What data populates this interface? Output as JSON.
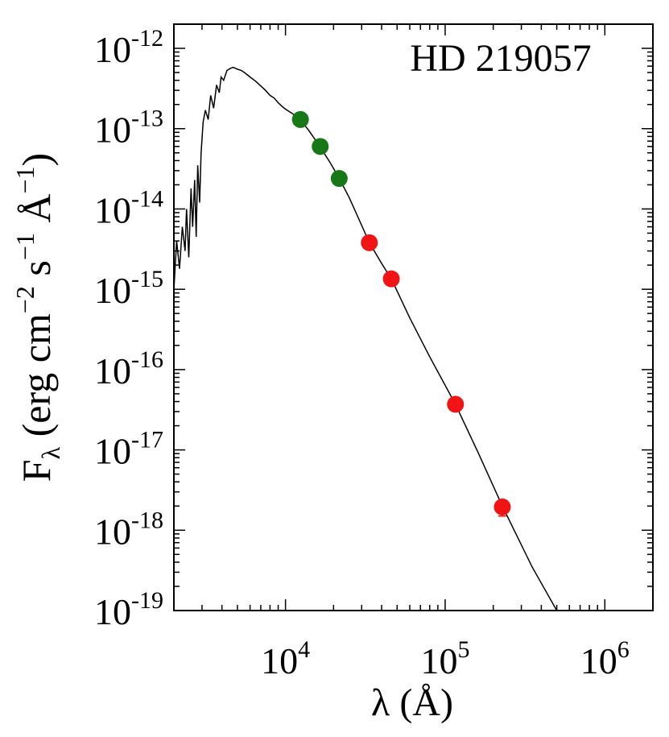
{
  "chart_data": {
    "type": "scatter",
    "annotation": "HD 219057",
    "xlabel": "λ (Å)",
    "ylabel": {
      "main": "F",
      "sub": "λ",
      "units_open": " (erg cm",
      "units_exp1": "−2",
      "units_mid": " s",
      "units_exp2": "−1",
      "units_angstrom": " Å",
      "units_exp3": "−1",
      "units_close": ")"
    },
    "x_scale": "log",
    "y_scale": "log",
    "xlim": [
      2000,
      2000000
    ],
    "ylim": [
      1e-19,
      2e-12
    ],
    "x_ticks": [
      {
        "value": 10000,
        "base": "10",
        "exp": "4"
      },
      {
        "value": 100000,
        "base": "10",
        "exp": "5"
      },
      {
        "value": 1000000,
        "base": "10",
        "exp": "6"
      }
    ],
    "y_ticks": [
      {
        "value": 1e-12,
        "base": "10",
        "exp": "-12"
      },
      {
        "value": 1e-13,
        "base": "10",
        "exp": "-13"
      },
      {
        "value": 1e-14,
        "base": "10",
        "exp": "-14"
      },
      {
        "value": 1e-15,
        "base": "10",
        "exp": "-15"
      },
      {
        "value": 1e-16,
        "base": "10",
        "exp": "-16"
      },
      {
        "value": 1e-17,
        "base": "10",
        "exp": "-17"
      },
      {
        "value": 1e-18,
        "base": "10",
        "exp": "-18"
      },
      {
        "value": 1e-19,
        "base": "10",
        "exp": "-19"
      }
    ],
    "grid": false,
    "series": [
      {
        "color": "#167816",
        "x": [
          12400,
          16500,
          21700
        ],
        "y": [
          1.3e-13,
          6e-14,
          2.4e-14
        ]
      },
      {
        "color": "#f01414",
        "x": [
          33500,
          46000,
          116000,
          228000
        ],
        "y": [
          3.8e-15,
          1.35e-15,
          3.7e-17,
          1.95e-18
        ],
        "yerr_low": [
          0,
          0,
          0,
          4.5e-19
        ]
      }
    ],
    "model": {
      "color": "#000000",
      "x": [
        2000,
        2080,
        2170,
        2260,
        2350,
        2400,
        2480,
        2560,
        2620,
        2700,
        2760,
        2820,
        2900,
        2960,
        3050,
        3150,
        3280,
        3400,
        3550,
        3700,
        3850,
        3950,
        4100,
        4300,
        4500,
        4700,
        5000,
        5300,
        5600,
        6000,
        6500,
        7000,
        7500,
        8000,
        8500,
        9000,
        9500,
        10000,
        11000,
        12400,
        14000,
        16500,
        19000,
        21700,
        25000,
        28000,
        33500,
        40000,
        46000,
        60000,
        80000,
        116000,
        160000,
        228000,
        350000,
        500000
      ],
      "y": [
        1e-15,
        4e-15,
        1.8e-15,
        6e-15,
        3e-15,
        1e-14,
        2.5e-15,
        1.8e-14,
        6e-15,
        2.3e-14,
        4.5e-15,
        3.5e-14,
        1.2e-14,
        5e-14,
        1.2e-13,
        1.7e-13,
        1.3e-13,
        2.6e-13,
        1.8e-13,
        3.5e-13,
        2.8e-13,
        4.4e-13,
        4e-13,
        5.3e-13,
        5.6e-13,
        5.8e-13,
        5.5e-13,
        5.3e-13,
        4.9e-13,
        4.4e-13,
        3.9e-13,
        3.4e-13,
        3e-13,
        2.6e-13,
        2.4e-13,
        2.1e-13,
        1.9e-13,
        1.75e-13,
        1.55e-13,
        1.28e-13,
        9.5e-14,
        5.9e-14,
        3.8e-14,
        2.4e-14,
        1.4e-14,
        8.5e-15,
        3.8e-15,
        2.1e-15,
        1.35e-15,
        4.4e-16,
        1.45e-16,
        3.7e-17,
        9.5e-18,
        2e-18,
        3.5e-19,
        1e-19
      ]
    }
  }
}
